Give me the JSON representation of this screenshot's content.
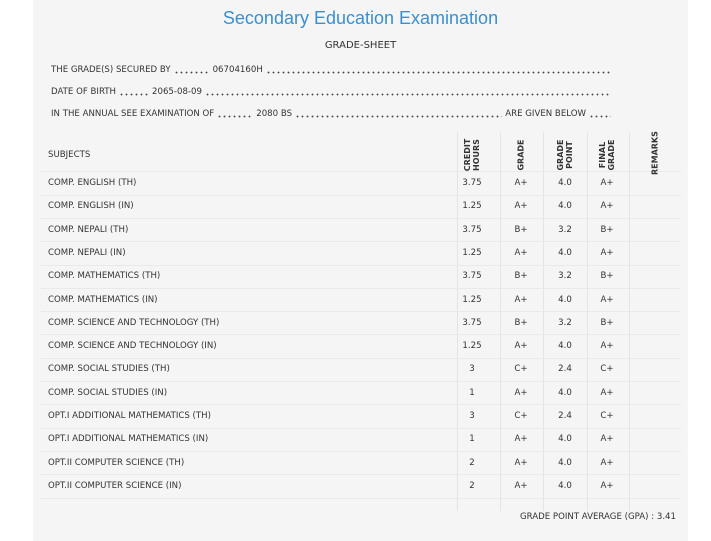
{
  "header": {
    "title": "Secondary Education Examination",
    "subtitle": "GRADE-SHEET"
  },
  "details": [
    {
      "label": "THE GRADE(S) SECURED BY",
      "value": "06704160H"
    },
    {
      "label": "DATE OF BIRTH",
      "value": "2065-08-09"
    },
    {
      "label": "IN THE ANNUAL SEE EXAMINATION OF",
      "value": "2080 BS",
      "suffix": "ARE GIVEN BELOW"
    }
  ],
  "table": {
    "columns": [
      "SUBJECTS",
      "CREDIT HOURS",
      "GRADE",
      "GRADE POINT",
      "FINAL GRADE",
      "REMARKS"
    ],
    "rows": [
      [
        "COMP. ENGLISH (TH)",
        "3.75",
        "A+",
        "4.0",
        "A+"
      ],
      [
        "COMP. ENGLISH (IN)",
        "1.25",
        "A+",
        "4.0",
        "A+"
      ],
      [
        "COMP. NEPALI (TH)",
        "3.75",
        "B+",
        "3.2",
        "B+"
      ],
      [
        "COMP. NEPALI (IN)",
        "1.25",
        "A+",
        "4.0",
        "A+"
      ],
      [
        "COMP. MATHEMATICS (TH)",
        "3.75",
        "B+",
        "3.2",
        "B+"
      ],
      [
        "COMP. MATHEMATICS (IN)",
        "1.25",
        "A+",
        "4.0",
        "A+"
      ],
      [
        "COMP. SCIENCE AND TECHNOLOGY (TH)",
        "3.75",
        "B+",
        "3.2",
        "B+"
      ],
      [
        "COMP. SCIENCE AND TECHNOLOGY (IN)",
        "1.25",
        "A+",
        "4.0",
        "A+"
      ],
      [
        "COMP. SOCIAL STUDIES (TH)",
        "3",
        "C+",
        "2.4",
        "C+"
      ],
      [
        "COMP. SOCIAL STUDIES (IN)",
        "1",
        "A+",
        "4.0",
        "A+"
      ],
      [
        "OPT.I ADDITIONAL MATHEMATICS (TH)",
        "3",
        "C+",
        "2.4",
        "C+"
      ],
      [
        "OPT.I ADDITIONAL MATHEMATICS (IN)",
        "1",
        "A+",
        "4.0",
        "A+"
      ],
      [
        "OPT.II COMPUTER SCIENCE (TH)",
        "2",
        "A+",
        "4.0",
        "A+"
      ],
      [
        "OPT.II COMPUTER SCIENCE (IN)",
        "2",
        "A+",
        "4.0",
        "A+"
      ]
    ]
  },
  "footer": {
    "label": "GRADE POINT AVERAGE (GPA) :",
    "value": "3.41"
  }
}
